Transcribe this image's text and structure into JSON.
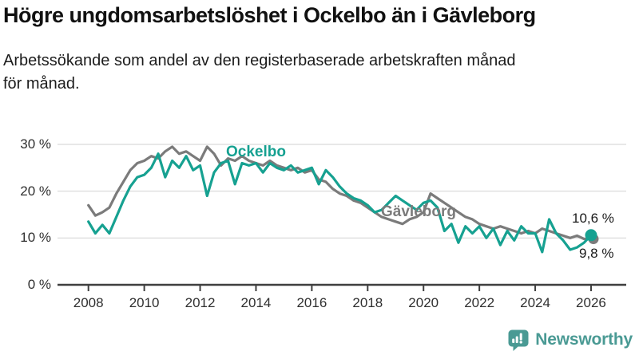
{
  "header": {
    "title": "Högre ungdomsarbetslöshet i Ockelbo än i Gävleborg",
    "subtitle": "Arbetssökande som andel av den registerbaserade arbetskraften månad\nför månad."
  },
  "colors": {
    "ockelbo": "#16a191",
    "gavleborg": "#7b7b7b",
    "grid": "#e0e0e0",
    "axis": "#3f3f3f",
    "tick_text": "#2f2f2f",
    "annotation_text": "#1a1a1a",
    "brand": "#4a9a94",
    "background": "#ffffff"
  },
  "annotations": {
    "ockelbo_label": "Ockelbo",
    "gavleborg_label": "Gävleborg",
    "ockelbo_end": "10,6 %",
    "gavleborg_end": "9,8 %"
  },
  "footer": {
    "brand": "Newsworthy"
  },
  "chart_data": {
    "type": "line",
    "title": "Högre ungdomsarbetslöshet i Ockelbo än i Gävleborg",
    "xlabel": "",
    "ylabel": "Arbetssökande som andel av den registerbaserade arbetskraften (%)",
    "ylim": [
      0,
      32
    ],
    "xlim": [
      2006.9,
      2027.3
    ],
    "grid": "horizontal",
    "legend": "inline-labels",
    "y_ticks": [
      {
        "value": 30,
        "label": "30 %"
      },
      {
        "value": 20,
        "label": "20 %"
      },
      {
        "value": 10,
        "label": "10 %"
      },
      {
        "value": 0,
        "label": "0 %"
      }
    ],
    "x_ticks": [
      {
        "value": 2008,
        "label": "2008"
      },
      {
        "value": 2010,
        "label": "2010"
      },
      {
        "value": 2012,
        "label": "2012"
      },
      {
        "value": 2014,
        "label": "2014"
      },
      {
        "value": 2016,
        "label": "2016"
      },
      {
        "value": 2018,
        "label": "2018"
      },
      {
        "value": 2020,
        "label": "2020"
      },
      {
        "value": 2022,
        "label": "2022"
      },
      {
        "value": 2024,
        "label": "2024"
      },
      {
        "value": 2026,
        "label": "2026"
      }
    ],
    "x": [
      2008,
      2008.25,
      2008.5,
      2008.75,
      2009,
      2009.25,
      2009.5,
      2009.75,
      2010,
      2010.25,
      2010.5,
      2010.75,
      2011,
      2011.25,
      2011.5,
      2011.75,
      2012,
      2012.25,
      2012.5,
      2012.75,
      2013,
      2013.25,
      2013.5,
      2013.75,
      2014,
      2014.25,
      2014.5,
      2014.75,
      2015,
      2015.25,
      2015.5,
      2015.75,
      2016,
      2016.25,
      2016.5,
      2016.75,
      2017,
      2017.25,
      2017.5,
      2017.75,
      2018,
      2018.25,
      2018.5,
      2018.75,
      2019,
      2019.25,
      2019.5,
      2019.75,
      2020,
      2020.25,
      2020.5,
      2020.75,
      2021,
      2021.25,
      2021.5,
      2021.75,
      2022,
      2022.25,
      2022.5,
      2022.75,
      2023,
      2023.25,
      2023.5,
      2023.75,
      2024,
      2024.25,
      2024.5,
      2024.75,
      2025,
      2025.25,
      2025.5,
      2025.75,
      2026.0
    ],
    "series": [
      {
        "name": "Ockelbo",
        "color": "#16a191",
        "end_value": 10.6,
        "end_label": "10,6 %",
        "values": [
          13.5,
          11.0,
          12.8,
          11.0,
          14.5,
          18.0,
          21.0,
          23.0,
          23.5,
          25.0,
          28.0,
          23.0,
          26.5,
          25.0,
          27.5,
          24.5,
          25.5,
          19.0,
          24.0,
          26.0,
          26.5,
          21.5,
          26.0,
          25.5,
          26.0,
          24.0,
          26.0,
          25.0,
          24.5,
          25.5,
          24.0,
          24.5,
          25.0,
          21.5,
          24.5,
          23.0,
          21.0,
          19.5,
          18.5,
          18.0,
          17.0,
          15.5,
          16.0,
          17.5,
          19.0,
          18.0,
          17.0,
          16.0,
          17.5,
          18.0,
          16.5,
          11.5,
          13.0,
          9.0,
          12.5,
          11.0,
          12.5,
          10.0,
          12.0,
          8.5,
          11.5,
          9.5,
          12.5,
          11.0,
          11.0,
          7.0,
          14.0,
          11.0,
          9.5,
          7.5,
          8.0,
          9.0,
          10.6
        ]
      },
      {
        "name": "Gävleborg",
        "color": "#7b7b7b",
        "end_value": 9.8,
        "end_label": "9,8 %",
        "values": [
          17.0,
          14.8,
          15.5,
          16.5,
          19.5,
          22.0,
          24.5,
          26.0,
          26.5,
          27.5,
          27.0,
          28.5,
          29.5,
          28.0,
          28.5,
          27.5,
          26.5,
          29.5,
          28.0,
          25.5,
          27.0,
          26.5,
          27.5,
          26.5,
          26.0,
          25.5,
          26.5,
          25.5,
          25.0,
          24.5,
          25.0,
          24.0,
          24.5,
          22.5,
          22.0,
          20.5,
          19.5,
          19.0,
          18.0,
          17.5,
          16.5,
          15.5,
          14.5,
          14.0,
          13.5,
          13.0,
          14.0,
          14.5,
          15.5,
          19.5,
          18.5,
          17.5,
          16.5,
          15.5,
          14.5,
          14.0,
          13.0,
          12.5,
          12.0,
          12.5,
          12.0,
          11.5,
          11.0,
          11.5,
          11.0,
          12.0,
          11.5,
          11.0,
          10.5,
          10.0,
          10.5,
          9.8,
          9.8
        ]
      }
    ]
  }
}
